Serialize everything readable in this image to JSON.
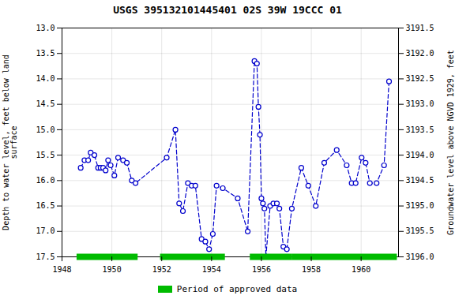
{
  "chart_data": {
    "type": "line",
    "title": "USGS 395132101445401 02S 39W 19CCC 01",
    "ylabel": "Depth to water level, feet below land\nsurface",
    "y2label": "Groundwater level above NGVD 1929, feet",
    "x": [
      1948.75,
      1948.9,
      1949.05,
      1949.15,
      1949.3,
      1949.45,
      1949.55,
      1949.65,
      1949.75,
      1949.85,
      1949.95,
      1950.1,
      1950.25,
      1950.45,
      1950.6,
      1950.8,
      1950.95,
      1952.2,
      1952.55,
      1952.7,
      1952.85,
      1953.05,
      1953.2,
      1953.35,
      1953.6,
      1953.75,
      1953.9,
      1954.05,
      1954.2,
      1954.45,
      1955.05,
      1955.45,
      1955.72,
      1955.82,
      1955.88,
      1955.94,
      1956.0,
      1956.06,
      1956.12,
      1956.18,
      1956.35,
      1956.48,
      1956.62,
      1956.72,
      1956.88,
      1957.02,
      1957.22,
      1957.6,
      1957.88,
      1958.18,
      1958.52,
      1959.02,
      1959.42,
      1959.62,
      1959.78,
      1960.02,
      1960.18,
      1960.35,
      1960.62,
      1960.92,
      1961.12
    ],
    "series": [
      {
        "values": [
          15.75,
          15.6,
          15.6,
          15.45,
          15.5,
          15.75,
          15.75,
          15.75,
          15.8,
          15.6,
          15.7,
          15.9,
          15.55,
          15.6,
          15.65,
          16.0,
          16.05,
          15.55,
          15.0,
          16.45,
          16.6,
          16.05,
          16.1,
          16.1,
          17.15,
          17.2,
          17.35,
          17.05,
          16.1,
          16.15,
          16.35,
          17.0,
          13.65,
          13.7,
          14.55,
          15.1,
          16.35,
          16.45,
          16.55,
          17.5,
          16.5,
          16.45,
          16.45,
          16.55,
          17.3,
          17.35,
          16.55,
          15.75,
          16.1,
          16.5,
          15.65,
          15.4,
          15.7,
          16.05,
          16.05,
          15.55,
          15.65,
          16.05,
          16.05,
          15.7,
          14.05
        ],
        "color": "#0000cc",
        "marker": "circle",
        "line_style": "dashed"
      }
    ],
    "xlim": [
      1948,
      1961.5
    ],
    "xticks": [
      1948,
      1950,
      1952,
      1954,
      1956,
      1958,
      1960
    ],
    "ylim": [
      17.5,
      13.0
    ],
    "yticks": [
      {
        "value": 13.0,
        "label": "13.0"
      },
      {
        "value": 13.5,
        "label": "13.5"
      },
      {
        "value": 14.0,
        "label": "14.0"
      },
      {
        "value": 14.5,
        "label": "14.5"
      },
      {
        "value": 15.0,
        "label": "15.0"
      },
      {
        "value": 15.5,
        "label": "15.5"
      },
      {
        "value": 16.0,
        "label": "16.0"
      },
      {
        "value": 16.5,
        "label": "16.5"
      },
      {
        "value": 17.0,
        "label": "17.0"
      },
      {
        "value": 17.5,
        "label": "17.5"
      }
    ],
    "y2lim": [
      3196.0,
      3191.5
    ],
    "y2ticks": [
      {
        "value": 3196.0,
        "label": "3196.0"
      },
      {
        "value": 3195.5,
        "label": "3195.5"
      },
      {
        "value": 3195.0,
        "label": "3195.0"
      },
      {
        "value": 3194.5,
        "label": "3194.5"
      },
      {
        "value": 3194.0,
        "label": "3194.0"
      },
      {
        "value": 3193.5,
        "label": "3193.5"
      },
      {
        "value": 3193.0,
        "label": "3193.0"
      },
      {
        "value": 3192.5,
        "label": "3192.5"
      },
      {
        "value": 3192.0,
        "label": "3192.0"
      },
      {
        "value": 3191.5,
        "label": "3191.5"
      }
    ],
    "approved_periods": {
      "name": "Period of approved data",
      "color": "#00bb00",
      "ranges": [
        [
          1948.6,
          1951.05
        ],
        [
          1951.95,
          1954.55
        ],
        [
          1955.55,
          1957.25
        ],
        [
          1957.25,
          1961.45
        ]
      ]
    },
    "grid": true,
    "legend": "bottom"
  }
}
